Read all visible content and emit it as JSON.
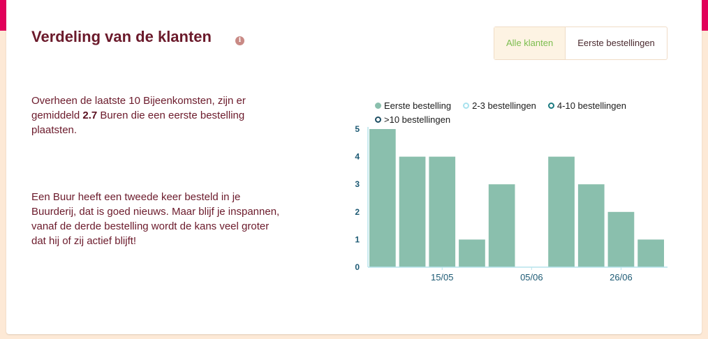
{
  "header": {
    "title": "Verdeling van de klanten",
    "info_icon": "info-icon"
  },
  "tabs": [
    {
      "label": "Alle klanten",
      "active": true
    },
    {
      "label": "Eerste bestellingen",
      "active": false
    }
  ],
  "text": {
    "para1_pre": "Overheen de laatste 10 Bijeenkomsten, zijn er gemiddeld ",
    "para1_value": "2.7",
    "para1_post": " Buren die een eerste bestelling plaatsten.",
    "para2": "Een Buur heeft een tweede keer besteld in je Buurderij, dat is goed nieuws. Maar blijf je inspannen, vanaf de derde bestelling wordt de kans veel groter dat hij of zij actief blijft!"
  },
  "colors": {
    "accent": "#e2005a",
    "title": "#6b1a2b",
    "bar": "#8abfad",
    "axis": "#1d5a74",
    "active_tab": "#7bbd4e"
  },
  "chart_data": {
    "type": "bar",
    "stacked": true,
    "x": [
      1,
      2,
      3,
      4,
      5,
      6,
      7,
      8,
      9,
      10
    ],
    "x_tick_labels": [
      {
        "index": 2,
        "label": "15/05"
      },
      {
        "index": 5,
        "label": "05/06"
      },
      {
        "index": 8,
        "label": "26/06"
      }
    ],
    "series": [
      {
        "name": "Eerste bestelling",
        "color": "#8abfad",
        "filled": true,
        "values": [
          5,
          4,
          4,
          1,
          3,
          0,
          4,
          3,
          2,
          1
        ]
      },
      {
        "name": "2-3 bestellingen",
        "color": "#a8e2ee",
        "filled": false,
        "values": [
          0,
          0,
          0,
          0,
          0,
          0,
          0,
          0,
          0,
          0
        ]
      },
      {
        "name": "4-10 bestellingen",
        "color": "#1a7a80",
        "filled": false,
        "values": [
          0,
          0,
          0,
          0,
          0,
          0,
          0,
          0,
          0,
          0
        ]
      },
      {
        "name": ">10 bestellingen",
        "color": "#1d4e63",
        "filled": false,
        "values": [
          0,
          0,
          0,
          0,
          0,
          0,
          0,
          0,
          0,
          0
        ]
      }
    ],
    "y_ticks": [
      0,
      1,
      2,
      3,
      4,
      5
    ],
    "ylim": [
      0,
      5
    ],
    "legend_position": "top",
    "grid": false
  }
}
